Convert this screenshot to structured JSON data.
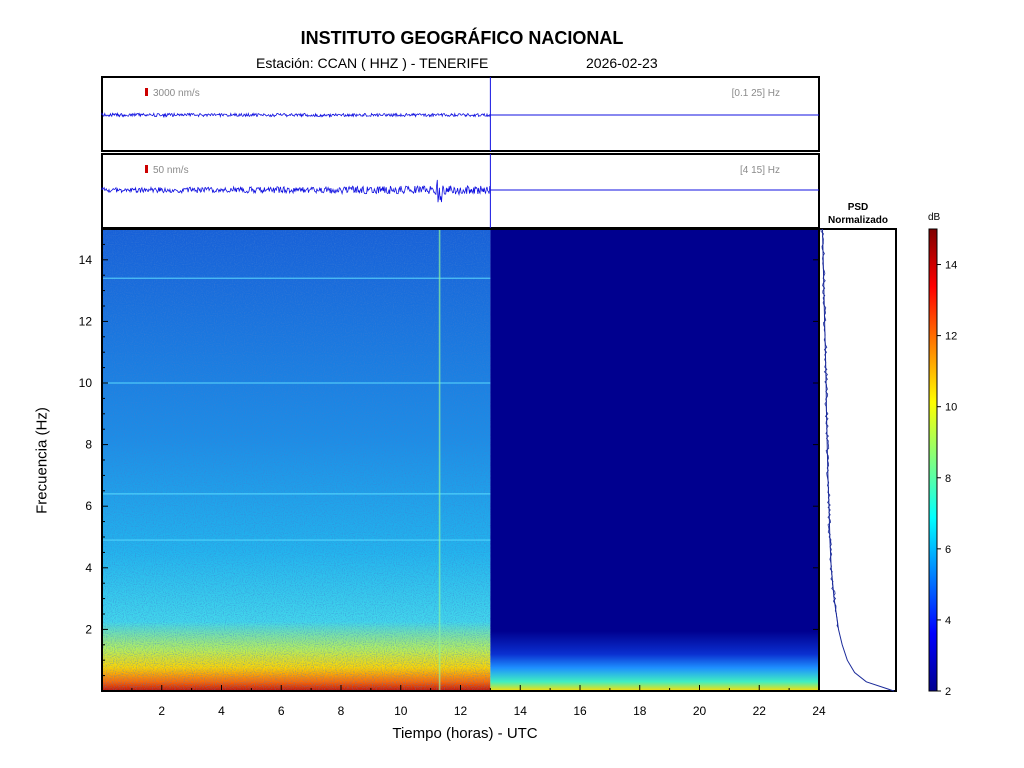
{
  "header": {
    "title": "INSTITUTO GEOGRÁFICO NACIONAL",
    "station_line": "Estación:  CCAN ( HHZ ) - TENERIFE",
    "date": "2026-02-23"
  },
  "traces": [
    {
      "scale_label": "3000 nm/s",
      "band_label": "[0.1 25] Hz",
      "data_end_hour": 13.0
    },
    {
      "scale_label": "50 nm/s",
      "band_label": "[4 15] Hz",
      "data_end_hour": 13.0
    }
  ],
  "psd": {
    "title_line1": "PSD",
    "title_line2": "Normalizado"
  },
  "colors": {
    "trace": "#1010e0",
    "scale_marker": "#cc0000",
    "band_text": "#8a8a8a",
    "axis": "#000000",
    "psd_line": "#1a2a9a"
  },
  "chart_data": {
    "type": "heatmap",
    "title": "INSTITUTO GEOGRÁFICO NACIONAL",
    "xlabel": "Tiempo (horas) - UTC",
    "ylabel": "Frecuencia  (Hz)",
    "xlim": [
      0,
      24
    ],
    "ylim": [
      0,
      15
    ],
    "x_ticks": [
      2,
      4,
      6,
      8,
      10,
      12,
      14,
      16,
      18,
      20,
      22,
      24
    ],
    "y_ticks": [
      2,
      4,
      6,
      8,
      10,
      12,
      14
    ],
    "data_end_hour": 13.0,
    "colorbar": {
      "label": "dB",
      "range": [
        2,
        15
      ],
      "ticks": [
        2,
        4,
        6,
        8,
        10,
        12,
        14
      ],
      "colormap": "jet"
    },
    "spectral_lines_hz": [
      4.9,
      6.4,
      10.0,
      13.4
    ],
    "event_time_hours": [
      11.3
    ],
    "psd_normalized": [
      {
        "freq": 0.0,
        "value": 1.0
      },
      {
        "freq": 0.3,
        "value": 0.62
      },
      {
        "freq": 0.6,
        "value": 0.46
      },
      {
        "freq": 1.0,
        "value": 0.36
      },
      {
        "freq": 1.5,
        "value": 0.29
      },
      {
        "freq": 2.0,
        "value": 0.24
      },
      {
        "freq": 3.0,
        "value": 0.18
      },
      {
        "freq": 4.0,
        "value": 0.14
      },
      {
        "freq": 5.0,
        "value": 0.12
      },
      {
        "freq": 6.0,
        "value": 0.11
      },
      {
        "freq": 7.0,
        "value": 0.095
      },
      {
        "freq": 8.0,
        "value": 0.085
      },
      {
        "freq": 9.0,
        "value": 0.075
      },
      {
        "freq": 10.0,
        "value": 0.07
      },
      {
        "freq": 11.0,
        "value": 0.06
      },
      {
        "freq": 12.0,
        "value": 0.05
      },
      {
        "freq": 13.0,
        "value": 0.04
      },
      {
        "freq": 14.0,
        "value": 0.03
      },
      {
        "freq": 15.0,
        "value": 0.02
      }
    ]
  }
}
